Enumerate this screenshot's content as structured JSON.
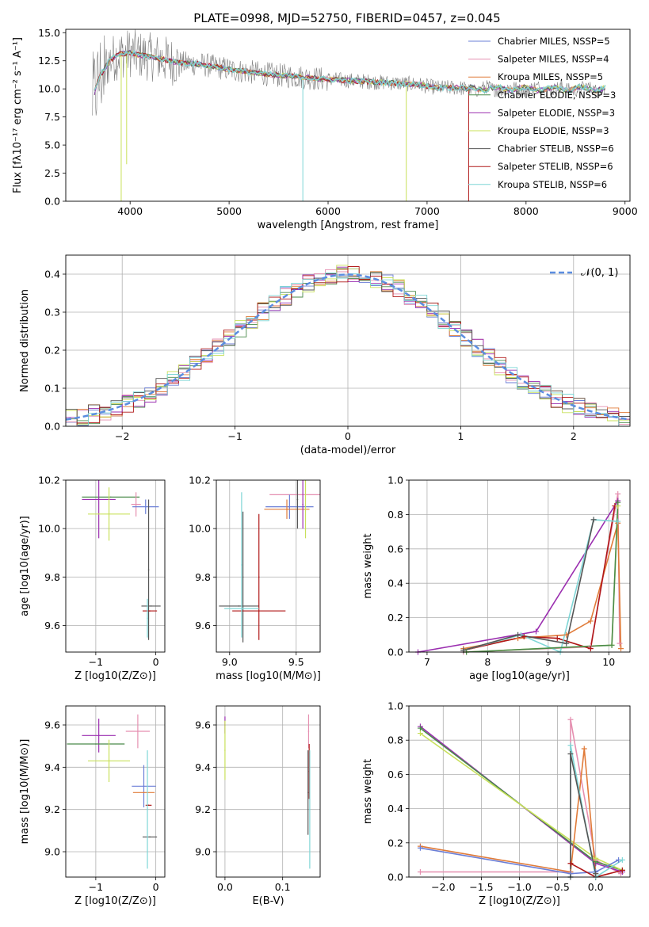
{
  "title": "PLATE=0998, MJD=52750, FIBERID=0457, z=0.045",
  "colors": {
    "chabrier_miles": "#6b7fd7",
    "salpeter_miles": "#e58fb0",
    "kroupa_miles": "#e07b39",
    "chabrier_elodie": "#4a8a4a",
    "salpeter_elodie": "#9b2fb0",
    "kroupa_elodie": "#c8e05a",
    "chabrier_stelib": "#555555",
    "salpeter_stelib": "#b01818",
    "kroupa_stelib": "#7fd6d6",
    "normal": "#5b8de0",
    "data": "#808080",
    "grid": "#b0b0b0"
  },
  "chart_data": [
    {
      "id": "spectrum",
      "type": "line",
      "title": "PLATE=0998, MJD=52750, FIBERID=0457, z=0.045",
      "xlabel": "wavelength [Angstrom, rest frame]",
      "ylabel": "Flux [fλ10⁻¹⁷ erg cm⁻² s⁻¹ A⁻¹]",
      "xlim": [
        3350,
        9050
      ],
      "ylim": [
        0,
        15.3
      ],
      "xticks": [
        "4000",
        "5000",
        "6000",
        "7000",
        "8000",
        "9000"
      ],
      "yticks": [
        "0.0",
        "2.5",
        "5.0",
        "7.5",
        "10.0",
        "12.5",
        "15.0"
      ],
      "grid": false,
      "legend_position": "top-right",
      "legend": [
        "Chabrier MILES, NSSP=5",
        "Salpeter MILES, NSSP=4",
        "Kroupa MILES, NSSP=5",
        "Chabrier ELODIE, NSSP=3",
        "Salpeter ELODIE, NSSP=3",
        "Kroupa ELODIE, NSSP=3",
        "Chabrier STELIB, NSSP=6",
        "Salpeter STELIB, NSSP=6",
        "Kroupa STELIB, NSSP=6"
      ],
      "continuum": {
        "x": [
          3620,
          3700,
          3800,
          3900,
          4000,
          4100,
          4300,
          4500,
          4700,
          4900,
          5100,
          5300,
          5500,
          5700,
          5900,
          6100,
          6300,
          6500,
          6700,
          6900,
          7100,
          7300,
          7420
        ],
        "y": [
          9.2,
          11.2,
          12.6,
          13.1,
          13.2,
          13.0,
          12.7,
          12.3,
          12.2,
          11.9,
          11.6,
          11.4,
          11.2,
          11.1,
          10.9,
          10.8,
          10.7,
          10.6,
          10.5,
          10.4,
          10.1,
          10.1,
          10.0
        ]
      }
    },
    {
      "id": "residuals",
      "type": "line",
      "xlabel": "(data-model)/error",
      "ylabel": "Normed distribution",
      "xlim": [
        -2.5,
        2.5
      ],
      "ylim": [
        0,
        0.45
      ],
      "xticks": [
        "−2",
        "−1",
        "0",
        "1",
        "2"
      ],
      "yticks": [
        "0.0",
        "0.1",
        "0.2",
        "0.3",
        "0.4"
      ],
      "grid": true,
      "legend": [
        "𝒩(0, 1)"
      ],
      "legend_position": "top-right",
      "bin_width": 0.1
    },
    {
      "id": "age_vs_z",
      "type": "scatter",
      "xlabel": "Z [log10(Z/Z⊙)]",
      "ylabel": "age  [log10(age/yr)]",
      "xlim": [
        -1.5,
        0.15
      ],
      "ylim": [
        9.49,
        10.2
      ],
      "xticks": [
        "−1",
        "0"
      ],
      "yticks": [
        "9.6",
        "9.8",
        "10.0",
        "10.2"
      ],
      "grid": true,
      "points": [
        {
          "x": -0.75,
          "y": 10.13,
          "xerr": 0.48,
          "yerr": 0.0,
          "series": "Chabrier ELODIE"
        },
        {
          "x": -0.95,
          "y": 10.12,
          "xerr": 0.28,
          "yerr": 0.16,
          "series": "Salpeter ELODIE"
        },
        {
          "x": -0.78,
          "y": 10.06,
          "xerr": 0.35,
          "yerr": 0.11,
          "series": "Kroupa ELODIE"
        },
        {
          "x": -0.33,
          "y": 10.1,
          "xerr": 0.08,
          "yerr": 0.05,
          "series": "Salpeter MILES"
        },
        {
          "x": -0.17,
          "y": 10.09,
          "xerr": 0.22,
          "yerr": 0.03,
          "series": "Chabrier MILES"
        },
        {
          "x": -0.12,
          "y": 9.83,
          "xerr": 0.0,
          "yerr": 0.29,
          "series": "Chabrier STELIB"
        },
        {
          "x": -0.08,
          "y": 9.68,
          "xerr": 0.16,
          "yerr": 0.0,
          "series": "Chabrier STELIB"
        },
        {
          "x": -0.1,
          "y": 9.66,
          "xerr": 0.12,
          "yerr": 0.0,
          "series": "Salpeter STELIB"
        },
        {
          "x": -0.14,
          "y": 9.63,
          "xerr": 0.0,
          "yerr": 0.08,
          "series": "Kroupa STELIB"
        }
      ]
    },
    {
      "id": "age_vs_mass",
      "type": "scatter",
      "xlabel": "mass [log10(M/M⊙)]",
      "ylabel": "",
      "xlim": [
        8.9,
        9.68
      ],
      "ylim": [
        9.49,
        10.2
      ],
      "xticks": [
        "9.0",
        "9.5"
      ],
      "yticks": [
        "9.6",
        "9.8",
        "10.0",
        "10.2"
      ],
      "grid": true,
      "points": [
        {
          "x": 9.5,
          "y": 10.14,
          "xerr": 0.2,
          "yerr": 0.0,
          "series": "Salpeter MILES"
        },
        {
          "x": 9.45,
          "y": 10.09,
          "xerr": 0.18,
          "yerr": 0.05,
          "series": "Chabrier MILES"
        },
        {
          "x": 9.43,
          "y": 10.08,
          "xerr": 0.17,
          "yerr": 0.04,
          "series": "Kroupa MILES"
        },
        {
          "x": 9.51,
          "y": 10.12,
          "xerr": 0.0,
          "yerr": 0.12,
          "series": "Chabrier STELIB"
        },
        {
          "x": 9.55,
          "y": 10.1,
          "xerr": 0.0,
          "yerr": 0.1,
          "series": "Salpeter ELODIE"
        },
        {
          "x": 9.57,
          "y": 10.08,
          "xerr": 0.0,
          "yerr": 0.12,
          "series": "Kroupa ELODIE"
        },
        {
          "x": 9.07,
          "y": 9.68,
          "xerr": 0.15,
          "yerr": 0.0,
          "series": "Chabrier STELIB"
        },
        {
          "x": 9.1,
          "y": 9.8,
          "xerr": 0.0,
          "yerr": 0.27,
          "series": "Chabrier STELIB"
        },
        {
          "x": 9.22,
          "y": 9.66,
          "xerr": 0.2,
          "yerr": 0.0,
          "series": "Salpeter STELIB"
        },
        {
          "x": 9.22,
          "y": 9.8,
          "xerr": 0.0,
          "yerr": 0.26,
          "series": "Salpeter STELIB"
        },
        {
          "x": 9.09,
          "y": 9.67,
          "xerr": 0.13,
          "yerr": 0.0,
          "series": "Kroupa STELIB"
        },
        {
          "x": 9.09,
          "y": 9.85,
          "xerr": 0.0,
          "yerr": 0.3,
          "series": "Kroupa STELIB"
        }
      ]
    },
    {
      "id": "weight_vs_age",
      "type": "line",
      "xlabel": "age  [log10(age/yr)]",
      "ylabel": "mass weight",
      "xlim": [
        6.7,
        10.35
      ],
      "ylim": [
        0,
        1.0
      ],
      "xticks": [
        "7",
        "8",
        "9",
        "10"
      ],
      "yticks": [
        "0.0",
        "0.2",
        "0.4",
        "0.6",
        "0.8",
        "1.0"
      ],
      "grid": true,
      "series": [
        {
          "name": "Salpeter MILES",
          "x": [
            7.6,
            9.7,
            10.15,
            10.18
          ],
          "y": [
            0.0,
            0.03,
            0.92,
            0.05
          ]
        },
        {
          "name": "Salpeter ELODIE",
          "x": [
            6.85,
            8.8,
            10.15
          ],
          "y": [
            0.0,
            0.12,
            0.88
          ]
        },
        {
          "name": "Kroupa MILES",
          "x": [
            7.6,
            8.5,
            9.3,
            9.7,
            10.15,
            10.2
          ],
          "y": [
            0.02,
            0.08,
            0.1,
            0.18,
            0.75,
            0.02
          ]
        },
        {
          "name": "Salpeter STELIB",
          "x": [
            7.6,
            8.6,
            9.15,
            9.7,
            10.1
          ],
          "y": [
            0.01,
            0.09,
            0.08,
            0.02,
            0.85
          ]
        },
        {
          "name": "Kroupa STELIB",
          "x": [
            7.6,
            8.55,
            9.2,
            9.75,
            10.15
          ],
          "y": [
            0.01,
            0.1,
            0.0,
            0.77,
            0.76
          ]
        },
        {
          "name": "Chabrier STELIB",
          "x": [
            7.6,
            8.5,
            9.3,
            9.75
          ],
          "y": [
            0.01,
            0.1,
            0.05,
            0.77
          ]
        },
        {
          "name": "Kroupa ELODIE",
          "x": [
            7.65,
            10.05,
            10.15
          ],
          "y": [
            0.0,
            0.04,
            0.85
          ]
        },
        {
          "name": "Chabrier ELODIE",
          "x": [
            7.65,
            10.05,
            10.15
          ],
          "y": [
            0.0,
            0.04,
            0.87
          ]
        }
      ]
    },
    {
      "id": "mass_vs_z",
      "type": "scatter",
      "xlabel": "Z [log10(Z/Z⊙)]",
      "ylabel": "mass [log10(M/M⊙)]",
      "xlim": [
        -1.5,
        0.15
      ],
      "ylim": [
        8.88,
        9.69
      ],
      "xticks": [
        "−1",
        "0"
      ],
      "yticks": [
        "9.0",
        "9.2",
        "9.4",
        "9.6"
      ],
      "grid": true,
      "points": [
        {
          "x": -0.95,
          "y": 9.55,
          "xerr": 0.28,
          "yerr": 0.08,
          "series": "Salpeter ELODIE"
        },
        {
          "x": -1.0,
          "y": 9.51,
          "xerr": 0.48,
          "yerr": 0.0,
          "series": "Chabrier ELODIE"
        },
        {
          "x": -0.78,
          "y": 9.43,
          "xerr": 0.35,
          "yerr": 0.1,
          "series": "Kroupa ELODIE"
        },
        {
          "x": -0.3,
          "y": 9.57,
          "xerr": 0.2,
          "yerr": 0.08,
          "series": "Salpeter MILES"
        },
        {
          "x": -0.2,
          "y": 9.31,
          "xerr": 0.2,
          "yerr": 0.1,
          "series": "Chabrier MILES"
        },
        {
          "x": -0.2,
          "y": 9.28,
          "xerr": 0.18,
          "yerr": 0.0,
          "series": "Kroupa MILES"
        },
        {
          "x": -0.12,
          "y": 9.22,
          "xerr": 0.05,
          "yerr": 0.0,
          "series": "Salpeter STELIB"
        },
        {
          "x": -0.1,
          "y": 9.07,
          "xerr": 0.12,
          "yerr": 0.0,
          "series": "Chabrier STELIB"
        },
        {
          "x": -0.14,
          "y": 9.2,
          "xerr": 0.0,
          "yerr": 0.28,
          "series": "Kroupa STELIB"
        }
      ]
    },
    {
      "id": "mass_vs_ebv",
      "type": "scatter",
      "xlabel": "E(B-V)",
      "ylabel": "",
      "xlim": [
        -0.015,
        0.165
      ],
      "ylim": [
        8.88,
        9.69
      ],
      "xticks": [
        "0.0",
        "0.1"
      ],
      "yticks": [
        "9.0",
        "9.2",
        "9.4",
        "9.6"
      ],
      "grid": true,
      "points": [
        {
          "x": 0.0,
          "y": 9.6,
          "xerr": 0.0,
          "yerr": 0.04,
          "series": "Salpeter ELODIE"
        },
        {
          "x": 0.0,
          "y": 9.48,
          "xerr": 0.0,
          "yerr": 0.14,
          "series": "Kroupa ELODIE"
        },
        {
          "x": 0.145,
          "y": 9.57,
          "xerr": 0.0,
          "yerr": 0.08,
          "series": "Salpeter MILES"
        },
        {
          "x": 0.146,
          "y": 9.38,
          "xerr": 0.0,
          "yerr": 0.13,
          "series": "Salpeter STELIB"
        },
        {
          "x": 0.144,
          "y": 9.28,
          "xerr": 0.0,
          "yerr": 0.2,
          "series": "Chabrier STELIB"
        },
        {
          "x": 0.147,
          "y": 9.2,
          "xerr": 0.0,
          "yerr": 0.28,
          "series": "Kroupa STELIB"
        }
      ]
    },
    {
      "id": "weight_vs_z",
      "type": "line",
      "xlabel": "Z [log10(Z/Z⊙)]",
      "ylabel": "mass weight",
      "xlim": [
        -2.45,
        0.45
      ],
      "ylim": [
        0,
        1.0
      ],
      "xticks": [
        "−2.0",
        "−1.5",
        "−1.0",
        "−0.5",
        "0.0"
      ],
      "yticks": [
        "0.0",
        "0.2",
        "0.4",
        "0.6",
        "0.8",
        "1.0"
      ],
      "grid": true,
      "series": [
        {
          "name": "Salpeter MILES",
          "x": [
            -2.3,
            -0.33,
            -0.33,
            0.0,
            0.33
          ],
          "y": [
            0.03,
            0.03,
            0.92,
            0.1,
            0.02
          ]
        },
        {
          "name": "Salpeter ELODIE",
          "x": [
            -2.3,
            0.0,
            0.35
          ],
          "y": [
            0.88,
            0.08,
            0.03
          ]
        },
        {
          "name": "Chabrier ELODIE",
          "x": [
            -2.3,
            0.0,
            0.35
          ],
          "y": [
            0.87,
            0.09,
            0.04
          ]
        },
        {
          "name": "Kroupa ELODIE",
          "x": [
            -2.3,
            0.0,
            0.35
          ],
          "y": [
            0.84,
            0.11,
            0.04
          ]
        },
        {
          "name": "Kroupa MILES",
          "x": [
            -2.3,
            -0.33,
            -0.15,
            0.0
          ],
          "y": [
            0.18,
            0.03,
            0.75,
            0.02
          ]
        },
        {
          "name": "Chabrier MILES",
          "x": [
            -2.3,
            -0.33,
            0.0,
            0.3
          ],
          "y": [
            0.17,
            0.02,
            0.03,
            0.1
          ]
        },
        {
          "name": "Salpeter STELIB",
          "x": [
            -0.33,
            0.0,
            0.35
          ],
          "y": [
            0.08,
            0.0,
            0.04
          ]
        },
        {
          "name": "Kroupa STELIB",
          "x": [
            -0.33,
            -0.33,
            0.0,
            0.35
          ],
          "y": [
            0.0,
            0.77,
            0.0,
            0.1
          ]
        },
        {
          "name": "Chabrier STELIB",
          "x": [
            -0.33,
            -0.33,
            0.0
          ],
          "y": [
            0.0,
            0.72,
            0.02
          ]
        }
      ]
    }
  ]
}
